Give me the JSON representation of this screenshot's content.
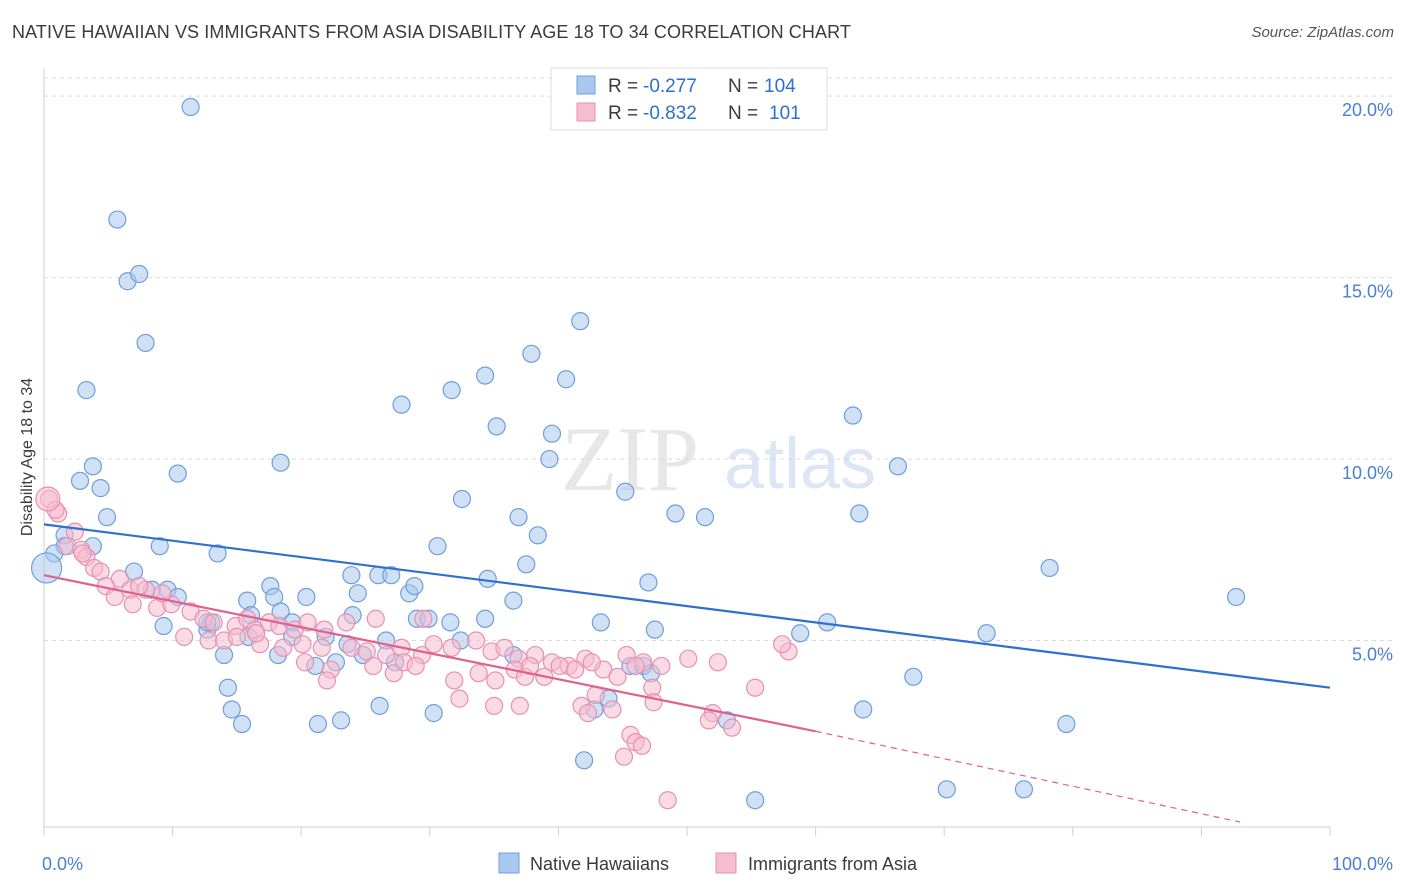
{
  "title": "NATIVE HAWAIIAN VS IMMIGRANTS FROM ASIA DISABILITY AGE 18 TO 34 CORRELATION CHART",
  "source": "Source: ZipAtlas.com",
  "watermark": {
    "zip": "ZIP",
    "atlas": "atlas"
  },
  "colors": {
    "blue_fill": "#a9c8ef",
    "blue_stroke": "#6f9fd8",
    "blue_line": "#2f6fd0",
    "pink_fill": "#f6bccf",
    "pink_stroke": "#e592b0",
    "pink_line": "#e0608e",
    "tick_label": "#4a7fd4",
    "grid": "#d9d9d9"
  },
  "legend_top": {
    "rows": [
      {
        "r_label": "R = ",
        "r_value": "-0.277",
        "n_label": "N = ",
        "n_value": "104"
      },
      {
        "r_label": "R = ",
        "r_value": "-0.832",
        "n_label": "N = ",
        "n_value": "101"
      }
    ]
  },
  "chart_data": {
    "type": "scatter",
    "title": "NATIVE HAWAIIAN VS IMMIGRANTS FROM ASIA DISABILITY AGE 18 TO 34 CORRELATION CHART",
    "xlabel": "",
    "ylabel": "Disability Age 18 to 34",
    "xlim": [
      0,
      100
    ],
    "ylim": [
      0,
      20.5
    ],
    "x_tick_labels": [
      "0.0%",
      "100.0%"
    ],
    "y_ticks": [
      5,
      10,
      15,
      20
    ],
    "y_tick_labels": [
      "5.0%",
      "10.0%",
      "15.0%",
      "20.0%"
    ],
    "grid": true,
    "legend_position": "bottom-center",
    "series": [
      {
        "name": "Native Hawaiians",
        "trend": {
          "x0": 0,
          "y0": 8.2,
          "x1": 100,
          "y1": 3.7
        },
        "points": [
          [
            11.4,
            19.7
          ],
          [
            5.7,
            16.6
          ],
          [
            6.5,
            14.9
          ],
          [
            7.4,
            15.1
          ],
          [
            7.9,
            13.2
          ],
          [
            3.3,
            11.9
          ],
          [
            41.7,
            13.8
          ],
          [
            37.9,
            12.9
          ],
          [
            34.3,
            12.3
          ],
          [
            40.6,
            12.2
          ],
          [
            31.7,
            11.9
          ],
          [
            27.8,
            11.5
          ],
          [
            62.9,
            11.2
          ],
          [
            35.2,
            10.9
          ],
          [
            39.5,
            10.7
          ],
          [
            3.8,
            9.8
          ],
          [
            10.4,
            9.6
          ],
          [
            18.4,
            9.9
          ],
          [
            39.3,
            10.0
          ],
          [
            66.4,
            9.8
          ],
          [
            2.8,
            9.4
          ],
          [
            4.4,
            9.2
          ],
          [
            32.5,
            8.9
          ],
          [
            45.2,
            9.1
          ],
          [
            1.6,
            7.9
          ],
          [
            4.9,
            8.4
          ],
          [
            36.9,
            8.4
          ],
          [
            49.1,
            8.5
          ],
          [
            51.4,
            8.4
          ],
          [
            63.4,
            8.5
          ],
          [
            38.4,
            7.9
          ],
          [
            1.6,
            7.6
          ],
          [
            3.8,
            7.6
          ],
          [
            9.0,
            7.6
          ],
          [
            13.5,
            7.4
          ],
          [
            30.6,
            7.6
          ],
          [
            37.5,
            7.1
          ],
          [
            0.8,
            7.4
          ],
          [
            7.0,
            6.9
          ],
          [
            23.9,
            6.8
          ],
          [
            26.0,
            6.8
          ],
          [
            27.0,
            6.8
          ],
          [
            34.5,
            6.7
          ],
          [
            47.0,
            6.6
          ],
          [
            78.2,
            7.0
          ],
          [
            8.4,
            6.4
          ],
          [
            9.6,
            6.4
          ],
          [
            10.4,
            6.2
          ],
          [
            15.8,
            6.1
          ],
          [
            17.6,
            6.5
          ],
          [
            17.9,
            6.2
          ],
          [
            20.4,
            6.2
          ],
          [
            24.4,
            6.3
          ],
          [
            28.4,
            6.3
          ],
          [
            28.8,
            6.5
          ],
          [
            36.5,
            6.1
          ],
          [
            92.7,
            6.2
          ],
          [
            12.7,
            5.3
          ],
          [
            13.0,
            5.5
          ],
          [
            16.1,
            5.7
          ],
          [
            18.4,
            5.8
          ],
          [
            19.3,
            5.5
          ],
          [
            24.0,
            5.7
          ],
          [
            29.0,
            5.6
          ],
          [
            29.9,
            5.6
          ],
          [
            31.6,
            5.5
          ],
          [
            34.3,
            5.6
          ],
          [
            43.3,
            5.5
          ],
          [
            60.9,
            5.5
          ],
          [
            9.3,
            5.4
          ],
          [
            12.7,
            5.5
          ],
          [
            15.9,
            5.1
          ],
          [
            19.3,
            5.1
          ],
          [
            21.9,
            5.1
          ],
          [
            23.6,
            4.9
          ],
          [
            26.6,
            5.0
          ],
          [
            32.4,
            5.0
          ],
          [
            47.5,
            5.3
          ],
          [
            58.8,
            5.2
          ],
          [
            73.3,
            5.2
          ],
          [
            14.0,
            4.6
          ],
          [
            18.2,
            4.6
          ],
          [
            21.1,
            4.3
          ],
          [
            22.7,
            4.4
          ],
          [
            24.8,
            4.6
          ],
          [
            27.3,
            4.4
          ],
          [
            36.5,
            4.6
          ],
          [
            45.6,
            4.3
          ],
          [
            46.6,
            4.3
          ],
          [
            47.2,
            4.1
          ],
          [
            67.6,
            4.0
          ],
          [
            14.3,
            3.7
          ],
          [
            43.9,
            3.4
          ],
          [
            42.8,
            3.1
          ],
          [
            63.7,
            3.1
          ],
          [
            14.6,
            3.1
          ],
          [
            26.1,
            3.2
          ],
          [
            30.3,
            3.0
          ],
          [
            15.4,
            2.7
          ],
          [
            21.3,
            2.7
          ],
          [
            23.1,
            2.8
          ],
          [
            53.1,
            2.8
          ],
          [
            79.5,
            2.7
          ],
          [
            42.0,
            1.7
          ],
          [
            55.3,
            0.6
          ],
          [
            70.2,
            0.9
          ],
          [
            76.2,
            0.9
          ]
        ]
      },
      {
        "name": "Immigrants from Asia",
        "trend": {
          "x0": 0,
          "y0": 6.8,
          "x1": 60,
          "y1": 2.5,
          "dash_to_x": 100,
          "dash_to_y": -0.3
        },
        "points": [
          [
            0.4,
            8.9
          ],
          [
            1.1,
            8.5
          ],
          [
            2.4,
            8.0
          ],
          [
            1.8,
            7.6
          ],
          [
            2.9,
            7.5
          ],
          [
            3.3,
            7.3
          ],
          [
            3.9,
            7.0
          ],
          [
            4.4,
            6.9
          ],
          [
            5.9,
            6.7
          ],
          [
            4.8,
            6.5
          ],
          [
            6.7,
            6.4
          ],
          [
            7.9,
            6.4
          ],
          [
            5.5,
            6.2
          ],
          [
            6.9,
            6.0
          ],
          [
            8.8,
            5.9
          ],
          [
            9.9,
            6.0
          ],
          [
            11.4,
            5.8
          ],
          [
            12.4,
            5.6
          ],
          [
            13.2,
            5.5
          ],
          [
            14.9,
            5.4
          ],
          [
            15.8,
            5.6
          ],
          [
            16.4,
            5.3
          ],
          [
            17.5,
            5.5
          ],
          [
            18.3,
            5.4
          ],
          [
            19.5,
            5.3
          ],
          [
            20.5,
            5.5
          ],
          [
            21.8,
            5.3
          ],
          [
            23.5,
            5.5
          ],
          [
            25.8,
            5.6
          ],
          [
            10.9,
            5.1
          ],
          [
            12.8,
            5.0
          ],
          [
            14.0,
            5.0
          ],
          [
            15.0,
            5.1
          ],
          [
            16.8,
            4.9
          ],
          [
            18.6,
            4.8
          ],
          [
            20.1,
            4.9
          ],
          [
            21.6,
            4.8
          ],
          [
            23.9,
            4.8
          ],
          [
            25.1,
            4.7
          ],
          [
            26.6,
            4.6
          ],
          [
            27.8,
            4.8
          ],
          [
            29.4,
            4.6
          ],
          [
            30.3,
            4.9
          ],
          [
            31.7,
            4.8
          ],
          [
            33.6,
            5.0
          ],
          [
            34.8,
            4.7
          ],
          [
            35.8,
            4.8
          ],
          [
            36.9,
            4.5
          ],
          [
            38.2,
            4.6
          ],
          [
            39.5,
            4.4
          ],
          [
            40.8,
            4.3
          ],
          [
            42.1,
            4.5
          ],
          [
            43.5,
            4.2
          ],
          [
            44.6,
            4.0
          ],
          [
            45.3,
            4.6
          ],
          [
            46.6,
            4.4
          ],
          [
            48.0,
            4.3
          ],
          [
            50.1,
            4.5
          ],
          [
            52.4,
            4.4
          ],
          [
            57.9,
            4.7
          ],
          [
            57.4,
            4.9
          ],
          [
            20.3,
            4.4
          ],
          [
            22.3,
            4.2
          ],
          [
            25.6,
            4.3
          ],
          [
            27.2,
            4.1
          ],
          [
            28.0,
            4.4
          ],
          [
            28.9,
            4.3
          ],
          [
            31.9,
            3.9
          ],
          [
            33.8,
            4.1
          ],
          [
            35.1,
            3.9
          ],
          [
            36.6,
            4.2
          ],
          [
            37.4,
            4.0
          ],
          [
            38.9,
            4.0
          ],
          [
            40.1,
            4.3
          ],
          [
            41.3,
            4.2
          ],
          [
            46.0,
            4.3
          ],
          [
            22.0,
            3.9
          ],
          [
            32.3,
            3.4
          ],
          [
            35.0,
            3.2
          ],
          [
            37.0,
            3.2
          ],
          [
            41.8,
            3.2
          ],
          [
            42.9,
            3.5
          ],
          [
            44.2,
            3.1
          ],
          [
            47.3,
            3.7
          ],
          [
            47.4,
            3.3
          ],
          [
            55.3,
            3.7
          ],
          [
            52.0,
            3.0
          ],
          [
            53.5,
            2.6
          ],
          [
            51.7,
            2.8
          ],
          [
            42.3,
            3.0
          ],
          [
            45.6,
            2.4
          ],
          [
            46.0,
            2.2
          ],
          [
            46.5,
            2.1
          ],
          [
            45.1,
            1.8
          ],
          [
            48.5,
            0.6
          ],
          [
            29.5,
            5.6
          ],
          [
            37.8,
            4.3
          ],
          [
            42.6,
            4.4
          ],
          [
            0.9,
            8.6
          ],
          [
            3.0,
            7.4
          ],
          [
            7.4,
            6.5
          ],
          [
            9.2,
            6.3
          ],
          [
            16.5,
            5.2
          ]
        ]
      }
    ]
  }
}
